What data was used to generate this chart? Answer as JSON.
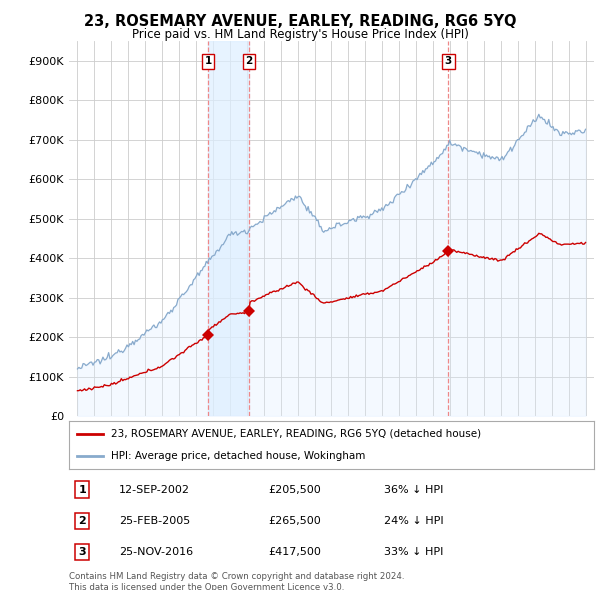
{
  "title": "23, ROSEMARY AVENUE, EARLEY, READING, RG6 5YQ",
  "subtitle": "Price paid vs. HM Land Registry's House Price Index (HPI)",
  "ylabel_ticks": [
    "£0",
    "£100K",
    "£200K",
    "£300K",
    "£400K",
    "£500K",
    "£600K",
    "£700K",
    "£800K",
    "£900K"
  ],
  "ytick_values": [
    0,
    100000,
    200000,
    300000,
    400000,
    500000,
    600000,
    700000,
    800000,
    900000
  ],
  "ylim": [
    0,
    950000
  ],
  "xlim_start": 1994.5,
  "xlim_end": 2025.5,
  "sale_color": "#cc0000",
  "hpi_color": "#88aacc",
  "hpi_fill_color": "#ddeeff",
  "vline_color": "#ee8888",
  "shade_color": "#ddeeff",
  "sale_label": "23, ROSEMARY AVENUE, EARLEY, READING, RG6 5YQ (detached house)",
  "hpi_label": "HPI: Average price, detached house, Wokingham",
  "transactions": [
    {
      "num": 1,
      "date_num": 2002.71,
      "price": 205500,
      "label": "12-SEP-2002",
      "pct": "36%",
      "dir": "↓"
    },
    {
      "num": 2,
      "date_num": 2005.14,
      "price": 265500,
      "label": "25-FEB-2005",
      "pct": "24%",
      "dir": "↓"
    },
    {
      "num": 3,
      "date_num": 2016.9,
      "price": 417500,
      "label": "25-NOV-2016",
      "pct": "33%",
      "dir": "↓"
    }
  ],
  "footer": "Contains HM Land Registry data © Crown copyright and database right 2024.\nThis data is licensed under the Open Government Licence v3.0.",
  "background_color": "#ffffff",
  "grid_color": "#cccccc"
}
